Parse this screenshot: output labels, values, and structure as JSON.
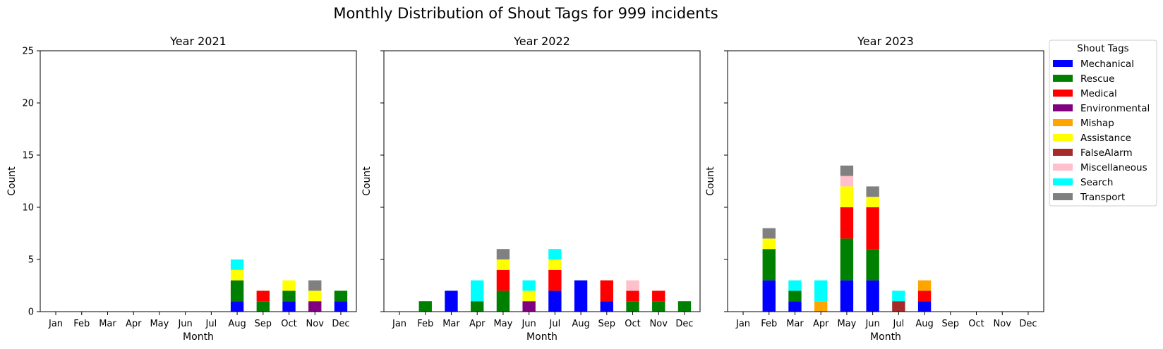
{
  "figure": {
    "suptitle": "Monthly Distribution of Shout Tags for 999 incidents"
  },
  "legend": {
    "title": "Shout Tags",
    "placement": "right"
  },
  "chart_data": [
    {
      "type": "bar",
      "stacked": true,
      "title": "Year 2021",
      "xlabel": "Month",
      "ylabel": "Count",
      "ylim": [
        0,
        25
      ],
      "yticks": [
        0,
        5,
        10,
        15,
        20,
        25
      ],
      "categories": [
        "Jan",
        "Feb",
        "Mar",
        "Apr",
        "May",
        "Jun",
        "Jul",
        "Aug",
        "Sep",
        "Oct",
        "Nov",
        "Dec"
      ],
      "series": [
        {
          "name": "Mechanical",
          "color": "#0000ff",
          "values": [
            0,
            0,
            0,
            0,
            0,
            0,
            0,
            1,
            0,
            1,
            0,
            1
          ]
        },
        {
          "name": "Rescue",
          "color": "#008000",
          "values": [
            0,
            0,
            0,
            0,
            0,
            0,
            0,
            2,
            1,
            1,
            0,
            1
          ]
        },
        {
          "name": "Medical",
          "color": "#ff0000",
          "values": [
            0,
            0,
            0,
            0,
            0,
            0,
            0,
            0,
            1,
            0,
            0,
            0
          ]
        },
        {
          "name": "Environmental",
          "color": "#800080",
          "values": [
            0,
            0,
            0,
            0,
            0,
            0,
            0,
            0,
            0,
            0,
            1,
            0
          ]
        },
        {
          "name": "Mishap",
          "color": "#ffa500",
          "values": [
            0,
            0,
            0,
            0,
            0,
            0,
            0,
            0,
            0,
            0,
            0,
            0
          ]
        },
        {
          "name": "Assistance",
          "color": "#ffff00",
          "values": [
            0,
            0,
            0,
            0,
            0,
            0,
            0,
            1,
            0,
            1,
            1,
            0
          ]
        },
        {
          "name": "FalseAlarm",
          "color": "#a52a2a",
          "values": [
            0,
            0,
            0,
            0,
            0,
            0,
            0,
            0,
            0,
            0,
            0,
            0
          ]
        },
        {
          "name": "Miscellaneous",
          "color": "#ffc0cb",
          "values": [
            0,
            0,
            0,
            0,
            0,
            0,
            0,
            0,
            0,
            0,
            0,
            0
          ]
        },
        {
          "name": "Search",
          "color": "#00ffff",
          "values": [
            0,
            0,
            0,
            0,
            0,
            0,
            0,
            1,
            0,
            0,
            0,
            0
          ]
        },
        {
          "name": "Transport",
          "color": "#808080",
          "values": [
            0,
            0,
            0,
            0,
            0,
            0,
            0,
            0,
            0,
            0,
            1,
            0
          ]
        }
      ]
    },
    {
      "type": "bar",
      "stacked": true,
      "title": "Year 2022",
      "xlabel": "Month",
      "ylabel": "Count",
      "ylim": [
        0,
        25
      ],
      "yticks": [
        0,
        5,
        10,
        15,
        20,
        25
      ],
      "categories": [
        "Jan",
        "Feb",
        "Mar",
        "Apr",
        "May",
        "Jun",
        "Jul",
        "Aug",
        "Sep",
        "Oct",
        "Nov",
        "Dec"
      ],
      "series": [
        {
          "name": "Mechanical",
          "color": "#0000ff",
          "values": [
            0,
            0,
            2,
            0,
            0,
            0,
            2,
            3,
            1,
            0,
            0,
            0
          ]
        },
        {
          "name": "Rescue",
          "color": "#008000",
          "values": [
            0,
            1,
            0,
            1,
            2,
            0,
            0,
            0,
            0,
            1,
            1,
            1
          ]
        },
        {
          "name": "Medical",
          "color": "#ff0000",
          "values": [
            0,
            0,
            0,
            0,
            2,
            0,
            2,
            0,
            2,
            1,
            1,
            0
          ]
        },
        {
          "name": "Environmental",
          "color": "#800080",
          "values": [
            0,
            0,
            0,
            0,
            0,
            1,
            0,
            0,
            0,
            0,
            0,
            0
          ]
        },
        {
          "name": "Mishap",
          "color": "#ffa500",
          "values": [
            0,
            0,
            0,
            0,
            0,
            0,
            0,
            0,
            0,
            0,
            0,
            0
          ]
        },
        {
          "name": "Assistance",
          "color": "#ffff00",
          "values": [
            0,
            0,
            0,
            0,
            1,
            1,
            1,
            0,
            0,
            0,
            0,
            0
          ]
        },
        {
          "name": "FalseAlarm",
          "color": "#a52a2a",
          "values": [
            0,
            0,
            0,
            0,
            0,
            0,
            0,
            0,
            0,
            0,
            0,
            0
          ]
        },
        {
          "name": "Miscellaneous",
          "color": "#ffc0cb",
          "values": [
            0,
            0,
            0,
            0,
            0,
            0,
            0,
            0,
            0,
            1,
            0,
            0
          ]
        },
        {
          "name": "Search",
          "color": "#00ffff",
          "values": [
            0,
            0,
            0,
            2,
            0,
            1,
            1,
            0,
            0,
            0,
            0,
            0
          ]
        },
        {
          "name": "Transport",
          "color": "#808080",
          "values": [
            0,
            0,
            0,
            0,
            1,
            0,
            0,
            0,
            0,
            0,
            0,
            0
          ]
        }
      ]
    },
    {
      "type": "bar",
      "stacked": true,
      "title": "Year 2023",
      "xlabel": "Month",
      "ylabel": "Count",
      "ylim": [
        0,
        25
      ],
      "yticks": [
        0,
        5,
        10,
        15,
        20,
        25
      ],
      "categories": [
        "Jan",
        "Feb",
        "Mar",
        "Apr",
        "May",
        "Jun",
        "Jul",
        "Aug",
        "Sep",
        "Oct",
        "Nov",
        "Dec"
      ],
      "series": [
        {
          "name": "Mechanical",
          "color": "#0000ff",
          "values": [
            0,
            3,
            1,
            0,
            3,
            3,
            0,
            1,
            0,
            0,
            0,
            0
          ]
        },
        {
          "name": "Rescue",
          "color": "#008000",
          "values": [
            0,
            3,
            1,
            0,
            4,
            3,
            0,
            0,
            0,
            0,
            0,
            0
          ]
        },
        {
          "name": "Medical",
          "color": "#ff0000",
          "values": [
            0,
            0,
            0,
            0,
            3,
            4,
            0,
            1,
            0,
            0,
            0,
            0
          ]
        },
        {
          "name": "Environmental",
          "color": "#800080",
          "values": [
            0,
            0,
            0,
            0,
            0,
            0,
            0,
            0,
            0,
            0,
            0,
            0
          ]
        },
        {
          "name": "Mishap",
          "color": "#ffa500",
          "values": [
            0,
            0,
            0,
            1,
            0,
            0,
            0,
            1,
            0,
            0,
            0,
            0
          ]
        },
        {
          "name": "Assistance",
          "color": "#ffff00",
          "values": [
            0,
            1,
            0,
            0,
            2,
            1,
            0,
            0,
            0,
            0,
            0,
            0
          ]
        },
        {
          "name": "FalseAlarm",
          "color": "#a52a2a",
          "values": [
            0,
            0,
            0,
            0,
            0,
            0,
            1,
            0,
            0,
            0,
            0,
            0
          ]
        },
        {
          "name": "Miscellaneous",
          "color": "#ffc0cb",
          "values": [
            0,
            0,
            0,
            0,
            1,
            0,
            0,
            0,
            0,
            0,
            0,
            0
          ]
        },
        {
          "name": "Search",
          "color": "#00ffff",
          "values": [
            0,
            0,
            1,
            2,
            0,
            0,
            1,
            0,
            0,
            0,
            0,
            0
          ]
        },
        {
          "name": "Transport",
          "color": "#808080",
          "values": [
            0,
            1,
            0,
            0,
            1,
            1,
            0,
            0,
            0,
            0,
            0,
            0
          ]
        }
      ]
    }
  ]
}
